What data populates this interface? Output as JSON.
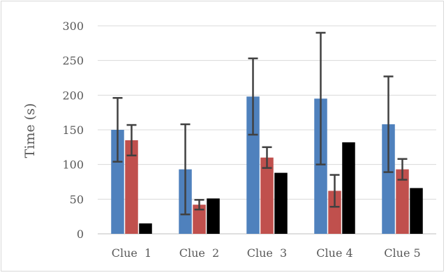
{
  "chart_data": {
    "type": "bar",
    "title": "",
    "xlabel": "",
    "ylabel": "Time (s)",
    "ylim": [
      0,
      300
    ],
    "yticks": [
      0,
      50,
      100,
      150,
      200,
      250,
      300
    ],
    "grid": true,
    "legend": "none",
    "categories": [
      "Clue  1",
      "Clue  2",
      "Clue  3",
      "Clue 4",
      "Clue 5"
    ],
    "series": [
      {
        "color": "#4f81bd",
        "values": [
          150,
          93,
          198,
          195,
          158
        ],
        "error": [
          46,
          65,
          55,
          95,
          69
        ]
      },
      {
        "color": "#c0504d",
        "values": [
          135,
          42,
          110,
          62,
          93
        ],
        "error": [
          22,
          7,
          15,
          23,
          15
        ]
      },
      {
        "color": "#000000",
        "values": [
          15,
          51,
          88,
          132,
          66
        ],
        "error": null
      }
    ]
  }
}
